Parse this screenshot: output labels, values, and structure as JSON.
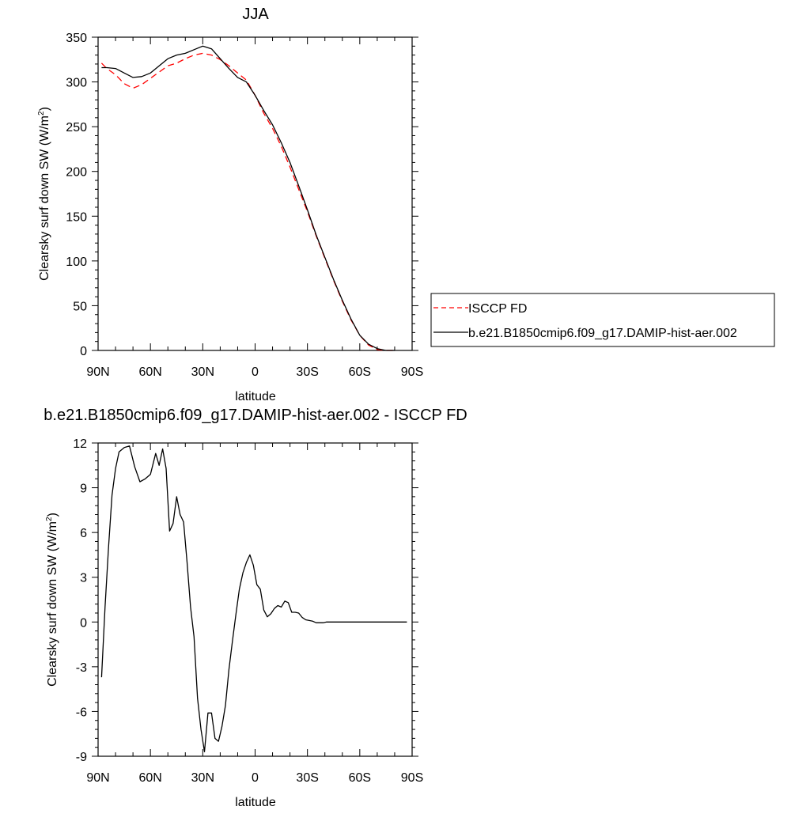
{
  "chart_data": [
    {
      "type": "line",
      "title": "JJA",
      "xlabel": "latitude",
      "ylabel_main": "Clearsky surf down SW (W/m",
      "ylabel_sup": "2",
      "ylabel_close": ")",
      "xlim": [
        90,
        -90
      ],
      "ylim": [
        0,
        350
      ],
      "xticks": [
        {
          "v": 90,
          "label": "90N"
        },
        {
          "v": 60,
          "label": "60N"
        },
        {
          "v": 30,
          "label": "30N"
        },
        {
          "v": 0,
          "label": "0"
        },
        {
          "v": -30,
          "label": "30S"
        },
        {
          "v": -60,
          "label": "60S"
        },
        {
          "v": -90,
          "label": "90S"
        }
      ],
      "yticks": [
        0,
        50,
        100,
        150,
        200,
        250,
        300,
        350
      ],
      "legend": {
        "placement": "right"
      },
      "series": [
        {
          "name": "ISCCP FD",
          "color": "#ff0000",
          "dash": true,
          "x": [
            88,
            85,
            80,
            75,
            70,
            65,
            60,
            55,
            50,
            45,
            40,
            35,
            30,
            25,
            20,
            15,
            10,
            5,
            0,
            -5,
            -10,
            -15,
            -20,
            -25,
            -30,
            -35,
            -40,
            -45,
            -50,
            -55,
            -60,
            -65,
            -70,
            -75,
            -80
          ],
          "values": [
            321,
            315,
            308,
            298,
            293,
            297,
            304,
            311,
            318,
            321,
            326,
            330,
            332,
            330,
            325,
            318,
            310,
            302,
            285,
            265,
            248,
            228,
            205,
            180,
            155,
            128,
            103,
            78,
            55,
            34,
            17,
            6,
            1,
            0,
            0
          ]
        },
        {
          "name": "b.e21.B1850cmip6.f09_g17.DAMIP-hist-aer.002",
          "color": "#000000",
          "dash": false,
          "x": [
            88,
            85,
            80,
            75,
            70,
            65,
            60,
            55,
            50,
            45,
            40,
            35,
            30,
            25,
            20,
            15,
            10,
            5,
            0,
            -5,
            -10,
            -15,
            -20,
            -25,
            -30,
            -35,
            -40,
            -45,
            -50,
            -55,
            -60,
            -65,
            -70,
            -75,
            -80
          ],
          "values": [
            316,
            316,
            315,
            310,
            305,
            306,
            310,
            318,
            326,
            330,
            332,
            336,
            340,
            337,
            326,
            315,
            305,
            300,
            285,
            268,
            252,
            232,
            210,
            184,
            157,
            129,
            104,
            79,
            56,
            35,
            17,
            7,
            2,
            0,
            0
          ]
        }
      ]
    },
    {
      "type": "line",
      "title": "b.e21.B1850cmip6.f09_g17.DAMIP-hist-aer.002 - ISCCP FD",
      "xlabel": "latitude",
      "ylabel_main": "Clearsky surf down SW (W/m",
      "ylabel_sup": "2",
      "ylabel_close": ")",
      "xlim": [
        90,
        -90
      ],
      "ylim": [
        -9,
        12
      ],
      "xticks": [
        {
          "v": 90,
          "label": "90N"
        },
        {
          "v": 60,
          "label": "60N"
        },
        {
          "v": 30,
          "label": "30N"
        },
        {
          "v": 0,
          "label": "0"
        },
        {
          "v": -30,
          "label": "30S"
        },
        {
          "v": -60,
          "label": "60S"
        },
        {
          "v": -90,
          "label": "90S"
        }
      ],
      "yticks": [
        -9,
        -6,
        -3,
        0,
        3,
        6,
        9,
        12
      ],
      "series": [
        {
          "color": "#000000",
          "dash": false,
          "x": [
            88,
            86,
            84,
            82,
            80,
            78,
            75,
            72,
            69,
            66,
            63,
            60,
            57,
            55,
            53,
            51,
            49,
            47,
            45,
            43,
            41,
            39,
            37,
            35,
            33,
            31,
            29,
            27,
            25,
            23,
            21,
            19,
            17,
            15,
            13,
            11,
            9,
            7,
            5,
            3,
            1,
            -1,
            -3,
            -5,
            -7,
            -9,
            -11,
            -13,
            -15,
            -17,
            -19,
            -21,
            -23,
            -25,
            -27,
            -29,
            -31,
            -33,
            -35,
            -37,
            -39,
            -41,
            -43,
            -45,
            -47,
            -49,
            -51,
            -53,
            -55,
            -57,
            -59,
            -61,
            -63,
            -65,
            -67,
            -69,
            -71,
            -73,
            -75,
            -77,
            -79,
            -81,
            -83,
            -85,
            -87
          ],
          "values": [
            -3.7,
            1.0,
            5.0,
            8.5,
            10.3,
            11.4,
            11.7,
            11.8,
            10.4,
            9.4,
            9.6,
            9.9,
            11.3,
            10.5,
            11.6,
            10.3,
            6.1,
            6.6,
            8.4,
            7.2,
            6.7,
            4.0,
            1.0,
            -1.0,
            -5.1,
            -7.2,
            -8.7,
            -6.1,
            -6.1,
            -7.8,
            -8.0,
            -7.0,
            -5.6,
            -3.2,
            -1.3,
            0.5,
            2.2,
            3.3,
            4.0,
            4.5,
            3.8,
            2.5,
            2.2,
            0.8,
            0.35,
            0.55,
            0.9,
            1.1,
            1.0,
            1.4,
            1.3,
            0.65,
            0.65,
            0.6,
            0.3,
            0.15,
            0.1,
            0.05,
            -0.05,
            -0.05,
            -0.05,
            0.0,
            0.0,
            0.0,
            0.0,
            0.0,
            0.0,
            0.0,
            0.0,
            0.0,
            0.0,
            0.0,
            0.0,
            0.0,
            0.0,
            0.0,
            0.0,
            0.0,
            0.0,
            0.0,
            0.0,
            0.0,
            0.0,
            0.0,
            0.0
          ]
        }
      ]
    }
  ]
}
